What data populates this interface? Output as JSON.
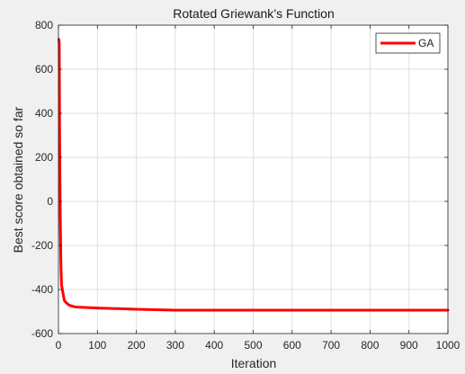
{
  "chart_data": {
    "type": "line",
    "title": "Rotated Griewank’s Function",
    "xlabel": "Iteration",
    "ylabel": "Best score obtained so far",
    "xlim": [
      0,
      1000
    ],
    "ylim": [
      -600,
      800
    ],
    "xticks": [
      0,
      100,
      200,
      300,
      400,
      500,
      600,
      700,
      800,
      900,
      1000
    ],
    "yticks": [
      -600,
      -400,
      -200,
      0,
      200,
      400,
      600,
      800
    ],
    "grid": true,
    "legend_position": "top-right",
    "series": [
      {
        "name": "GA",
        "color": "#ff0000",
        "x": [
          1,
          2,
          3,
          4,
          5,
          6,
          7,
          8,
          10,
          12,
          15,
          20,
          25,
          30,
          40,
          50,
          75,
          100,
          150,
          200,
          250,
          300,
          400,
          500,
          600,
          700,
          800,
          900,
          1000
        ],
        "y": [
          735,
          720,
          300,
          60,
          -120,
          -250,
          -330,
          -380,
          -400,
          -420,
          -450,
          -460,
          -468,
          -473,
          -478,
          -480,
          -482,
          -484,
          -487,
          -490,
          -492,
          -494,
          -494,
          -494,
          -494,
          -494,
          -494,
          -494,
          -494
        ]
      }
    ]
  }
}
